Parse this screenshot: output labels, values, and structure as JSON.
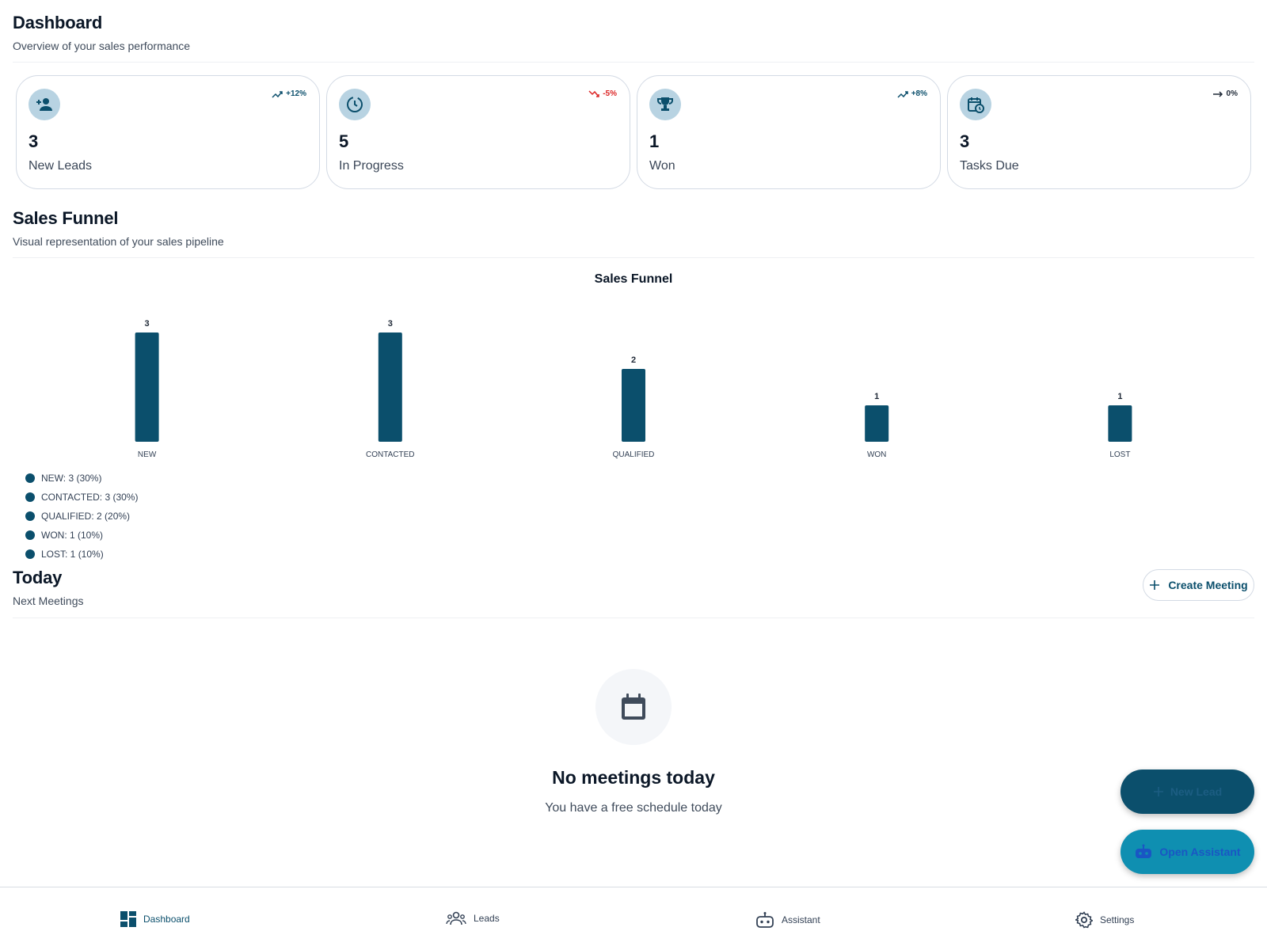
{
  "header": {
    "title": "Dashboard",
    "subtitle": "Overview of your sales performance"
  },
  "stats": [
    {
      "icon": "person-add-icon",
      "trend": "+12%",
      "trend_dir": "up",
      "value": "3",
      "label": "New Leads"
    },
    {
      "icon": "clock-progress-icon",
      "trend": "-5%",
      "trend_dir": "down",
      "value": "5",
      "label": "In Progress"
    },
    {
      "icon": "trophy-icon",
      "trend": "+8%",
      "trend_dir": "up",
      "value": "1",
      "label": "Won"
    },
    {
      "icon": "calendar-clock-icon",
      "trend": "0%",
      "trend_dir": "flat",
      "value": "3",
      "label": "Tasks Due"
    }
  ],
  "funnel_section": {
    "title": "Sales Funnel",
    "subtitle": "Visual representation of your sales pipeline"
  },
  "chart_data": {
    "type": "bar",
    "title": "Sales Funnel",
    "categories": [
      "NEW",
      "CONTACTED",
      "QUALIFIED",
      "WON",
      "LOST"
    ],
    "values": [
      3,
      3,
      2,
      1,
      1
    ],
    "ylim": [
      0,
      3
    ],
    "grid": false,
    "legend_placement": "bottom-left",
    "legend": [
      "NEW: 3 (30%)",
      "CONTACTED: 3 (30%)",
      "QUALIFIED: 2 (20%)",
      "WON: 1 (10%)",
      "LOST: 1 (10%)"
    ],
    "bar_color": "#0b4f6c"
  },
  "today": {
    "title": "Today",
    "subtitle": "Next Meetings",
    "create_label": "Create Meeting",
    "empty_title": "No meetings today",
    "empty_subtitle": "You have a free schedule today"
  },
  "fabs": {
    "new_lead": "New Lead",
    "assistant": "Open Assistant"
  },
  "nav": [
    {
      "label": "Dashboard",
      "icon": "dashboard-icon",
      "active": true
    },
    {
      "label": "Leads",
      "icon": "people-icon",
      "active": false
    },
    {
      "label": "Assistant",
      "icon": "robot-icon",
      "active": false
    },
    {
      "label": "Settings",
      "icon": "gear-icon",
      "active": false
    }
  ],
  "colors": {
    "primary": "#0b4f6c",
    "accent": "#0f8fb1",
    "icon_bg": "#b8d3e2",
    "negative": "#dc2626"
  }
}
